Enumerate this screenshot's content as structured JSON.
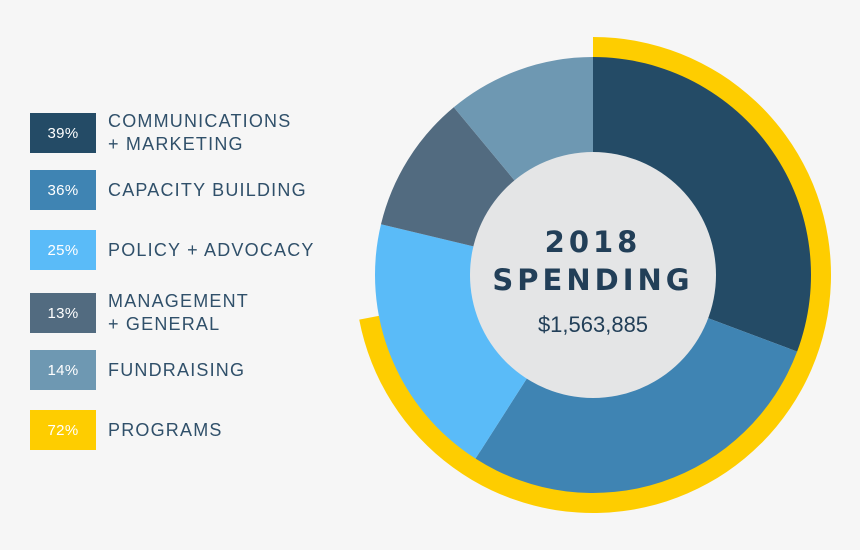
{
  "chart_data": {
    "type": "pie",
    "title_line1": "2018",
    "title_line2": "SPENDING",
    "total": "$1,563,885",
    "colors": {
      "outer_ring": "#fecd00",
      "inner_circle": "#e4e5e6"
    },
    "legend": [
      {
        "label": "COMMUNICATIONS\n+ MARKETING",
        "percent_label": "39%",
        "value": 39,
        "color": "#244b66"
      },
      {
        "label": "CAPACITY BUILDING",
        "percent_label": "36%",
        "value": 36,
        "color": "#3f84b3"
      },
      {
        "label": "POLICY + ADVOCACY",
        "percent_label": "25%",
        "value": 25,
        "color": "#5abbf8"
      },
      {
        "label": "MANAGEMENT\n+ GENERAL",
        "percent_label": "13%",
        "value": 13,
        "color": "#526b80"
      },
      {
        "label": "FUNDRAISING",
        "percent_label": "14%",
        "value": 14,
        "color": "#6e98b2"
      },
      {
        "label": "PROGRAMS",
        "percent_label": "72%",
        "value": 72,
        "color": "#fecd00"
      }
    ],
    "slices": [
      {
        "label": "COMMUNICATIONS\n+ MARKETING",
        "value": 39,
        "color": "#244b66"
      },
      {
        "label": "CAPACITY BUILDING",
        "value": 36,
        "color": "#3f84b3"
      },
      {
        "label": "POLICY + ADVOCACY",
        "value": 25,
        "color": "#5abbf8"
      },
      {
        "label": "MANAGEMENT\n+ GENERAL",
        "value": 13,
        "color": "#526b80"
      },
      {
        "label": "FUNDRAISING",
        "value": 14,
        "color": "#6e98b2"
      }
    ],
    "outer_ring": {
      "label": "PROGRAMS",
      "value": 72,
      "color": "#fecd00"
    }
  }
}
